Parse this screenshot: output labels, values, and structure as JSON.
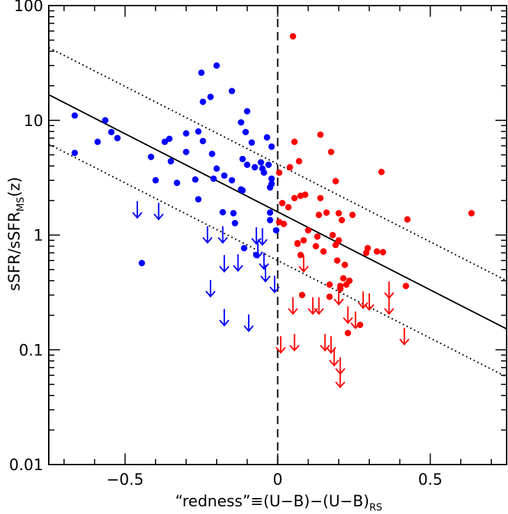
{
  "chart_data": {
    "type": "scatter",
    "title": "",
    "xlabel": {
      "prefix": "“redness”≡(U−B)−(U−B)",
      "subscript": "RS"
    },
    "ylabel": {
      "prefix": "sSFR/sSFR",
      "subscript": "MS",
      "suffix": "(z)"
    },
    "xlim": [
      -0.75,
      0.75
    ],
    "ylim": [
      0.01,
      100
    ],
    "yscale": "log",
    "x_ticks": [
      {
        "value": -0.5,
        "label": "−0.5"
      },
      {
        "value": 0,
        "label": "0"
      },
      {
        "value": 0.5,
        "label": "0.5"
      }
    ],
    "y_ticks": [
      {
        "value": 0.01,
        "label": "0.01"
      },
      {
        "value": 0.1,
        "label": "0.1"
      },
      {
        "value": 1,
        "label": "1"
      },
      {
        "value": 10,
        "label": "10"
      },
      {
        "value": 100,
        "label": "100"
      }
    ],
    "colors": {
      "blue": "#0000ff",
      "red": "#ff0000",
      "axis": "#000000"
    },
    "reference_lines": [
      {
        "name": "main-sequence-fit",
        "style": "solid",
        "points": [
          [
            -0.75,
            16.7
          ],
          [
            0.75,
            0.152
          ]
        ]
      },
      {
        "name": "upper-bound",
        "style": "dotted",
        "points": [
          [
            -0.75,
            43
          ],
          [
            0.75,
            0.4
          ]
        ]
      },
      {
        "name": "lower-bound",
        "style": "dotted",
        "points": [
          [
            -0.75,
            6.2
          ],
          [
            0.75,
            0.058
          ]
        ]
      },
      {
        "name": "zero-redness",
        "style": "dashed",
        "vertical_x": 0
      }
    ],
    "series": [
      {
        "name": "blue detections",
        "color": "#0000ff",
        "marker": "circle",
        "points": [
          [
            -0.665,
            11.0
          ],
          [
            -0.665,
            5.2
          ],
          [
            -0.59,
            6.5
          ],
          [
            -0.565,
            10.0
          ],
          [
            -0.545,
            7.9
          ],
          [
            -0.525,
            7.0
          ],
          [
            -0.445,
            0.57
          ],
          [
            -0.415,
            4.8
          ],
          [
            -0.4,
            3.0
          ],
          [
            -0.37,
            6.5
          ],
          [
            -0.355,
            6.9
          ],
          [
            -0.35,
            4.4
          ],
          [
            -0.33,
            2.85
          ],
          [
            -0.3,
            7.7
          ],
          [
            -0.3,
            5.3
          ],
          [
            -0.27,
            3.05
          ],
          [
            -0.26,
            8.0
          ],
          [
            -0.26,
            2.05
          ],
          [
            -0.25,
            26.0
          ],
          [
            -0.245,
            14.5
          ],
          [
            -0.245,
            6.6
          ],
          [
            -0.22,
            16.0
          ],
          [
            -0.215,
            5.1
          ],
          [
            -0.21,
            3.1
          ],
          [
            -0.2,
            30.0
          ],
          [
            -0.2,
            3.8
          ],
          [
            -0.18,
            1.58
          ],
          [
            -0.175,
            3.3
          ],
          [
            -0.15,
            18.0
          ],
          [
            -0.15,
            3.0
          ],
          [
            -0.145,
            1.55
          ],
          [
            -0.14,
            1.27
          ],
          [
            -0.12,
            9.6
          ],
          [
            -0.12,
            2.5
          ],
          [
            -0.115,
            4.6
          ],
          [
            -0.115,
            2.45
          ],
          [
            -0.11,
            0.77
          ],
          [
            -0.105,
            7.9
          ],
          [
            -0.1,
            12.0
          ],
          [
            -0.1,
            4.1
          ],
          [
            -0.085,
            6.4
          ],
          [
            -0.075,
            3.9
          ],
          [
            -0.07,
            0.67
          ],
          [
            -0.055,
            4.3
          ],
          [
            -0.05,
            3.8
          ],
          [
            -0.045,
            3.5
          ],
          [
            -0.035,
            7.1
          ],
          [
            -0.03,
            4.1
          ],
          [
            -0.025,
            2.6
          ],
          [
            -0.025,
            1.57
          ],
          [
            -0.025,
            1.35
          ],
          [
            -0.02,
            5.9
          ],
          [
            -0.02,
            3.1
          ],
          [
            -0.02,
            2.8
          ],
          [
            -0.005,
            1.1
          ]
        ]
      },
      {
        "name": "blue upper limits",
        "color": "#0000ff",
        "marker": "down-arrow",
        "points": [
          [
            -0.46,
            1.65
          ],
          [
            -0.39,
            1.6
          ],
          [
            -0.23,
            1.0
          ],
          [
            -0.22,
            0.34
          ],
          [
            -0.18,
            1.0
          ],
          [
            -0.175,
            0.56
          ],
          [
            -0.175,
            0.19
          ],
          [
            -0.13,
            0.57
          ],
          [
            -0.095,
            0.17
          ],
          [
            -0.07,
            0.98
          ],
          [
            -0.065,
            0.74
          ],
          [
            -0.05,
            0.96
          ],
          [
            -0.045,
            0.59
          ],
          [
            -0.04,
            0.46
          ],
          [
            -0.01,
            0.37
          ]
        ]
      },
      {
        "name": "red detections",
        "color": "#ff0000",
        "marker": "circle",
        "points": [
          [
            0.005,
            3.5
          ],
          [
            0.005,
            1.3
          ],
          [
            0.015,
            1.9
          ],
          [
            0.02,
            1.25
          ],
          [
            0.035,
            1.75
          ],
          [
            0.04,
            3.9
          ],
          [
            0.05,
            54.0
          ],
          [
            0.055,
            6.5
          ],
          [
            0.055,
            2.1
          ],
          [
            0.065,
            0.85
          ],
          [
            0.065,
            0.84
          ],
          [
            0.07,
            4.4
          ],
          [
            0.075,
            0.67
          ],
          [
            0.075,
            2.2
          ],
          [
            0.08,
            0.3
          ],
          [
            0.085,
            0.9
          ],
          [
            0.09,
            2.25
          ],
          [
            0.1,
            1.1
          ],
          [
            0.125,
            0.8
          ],
          [
            0.13,
            0.97
          ],
          [
            0.135,
            1.5
          ],
          [
            0.14,
            7.5
          ],
          [
            0.14,
            2.1
          ],
          [
            0.15,
            0.72
          ],
          [
            0.16,
            1.57
          ],
          [
            0.17,
            0.37
          ],
          [
            0.17,
            0.29
          ],
          [
            0.175,
            5.3
          ],
          [
            0.18,
            1.0
          ],
          [
            0.19,
            2.95
          ],
          [
            0.19,
            0.82
          ],
          [
            0.195,
            0.6
          ],
          [
            0.2,
            1.55
          ],
          [
            0.2,
            0.9
          ],
          [
            0.205,
            0.36
          ],
          [
            0.205,
            0.34
          ],
          [
            0.21,
            1.35
          ],
          [
            0.215,
            0.42
          ],
          [
            0.22,
            0.55
          ],
          [
            0.225,
            0.37
          ],
          [
            0.23,
            0.14
          ],
          [
            0.235,
            0.4
          ],
          [
            0.245,
            1.5
          ],
          [
            0.27,
            0.165
          ],
          [
            0.29,
            0.7
          ],
          [
            0.295,
            0.77
          ],
          [
            0.325,
            0.72
          ],
          [
            0.34,
            3.55
          ],
          [
            0.345,
            0.71
          ],
          [
            0.42,
            0.36
          ],
          [
            0.425,
            1.37
          ],
          [
            0.635,
            1.55
          ]
        ]
      },
      {
        "name": "red upper limits",
        "color": "#ff0000",
        "marker": "down-arrow",
        "points": [
          [
            0.01,
            0.11
          ],
          [
            0.05,
            0.24
          ],
          [
            0.055,
            0.115
          ],
          [
            0.085,
            0.56
          ],
          [
            0.115,
            0.24
          ],
          [
            0.135,
            0.24
          ],
          [
            0.155,
            0.115
          ],
          [
            0.175,
            0.11
          ],
          [
            0.185,
            0.085
          ],
          [
            0.2,
            0.29
          ],
          [
            0.205,
            0.072
          ],
          [
            0.205,
            0.055
          ],
          [
            0.23,
            0.2
          ],
          [
            0.255,
            0.18
          ],
          [
            0.28,
            0.27
          ],
          [
            0.3,
            0.26
          ],
          [
            0.365,
            0.33
          ],
          [
            0.365,
            0.24
          ],
          [
            0.415,
            0.13
          ]
        ]
      }
    ]
  }
}
